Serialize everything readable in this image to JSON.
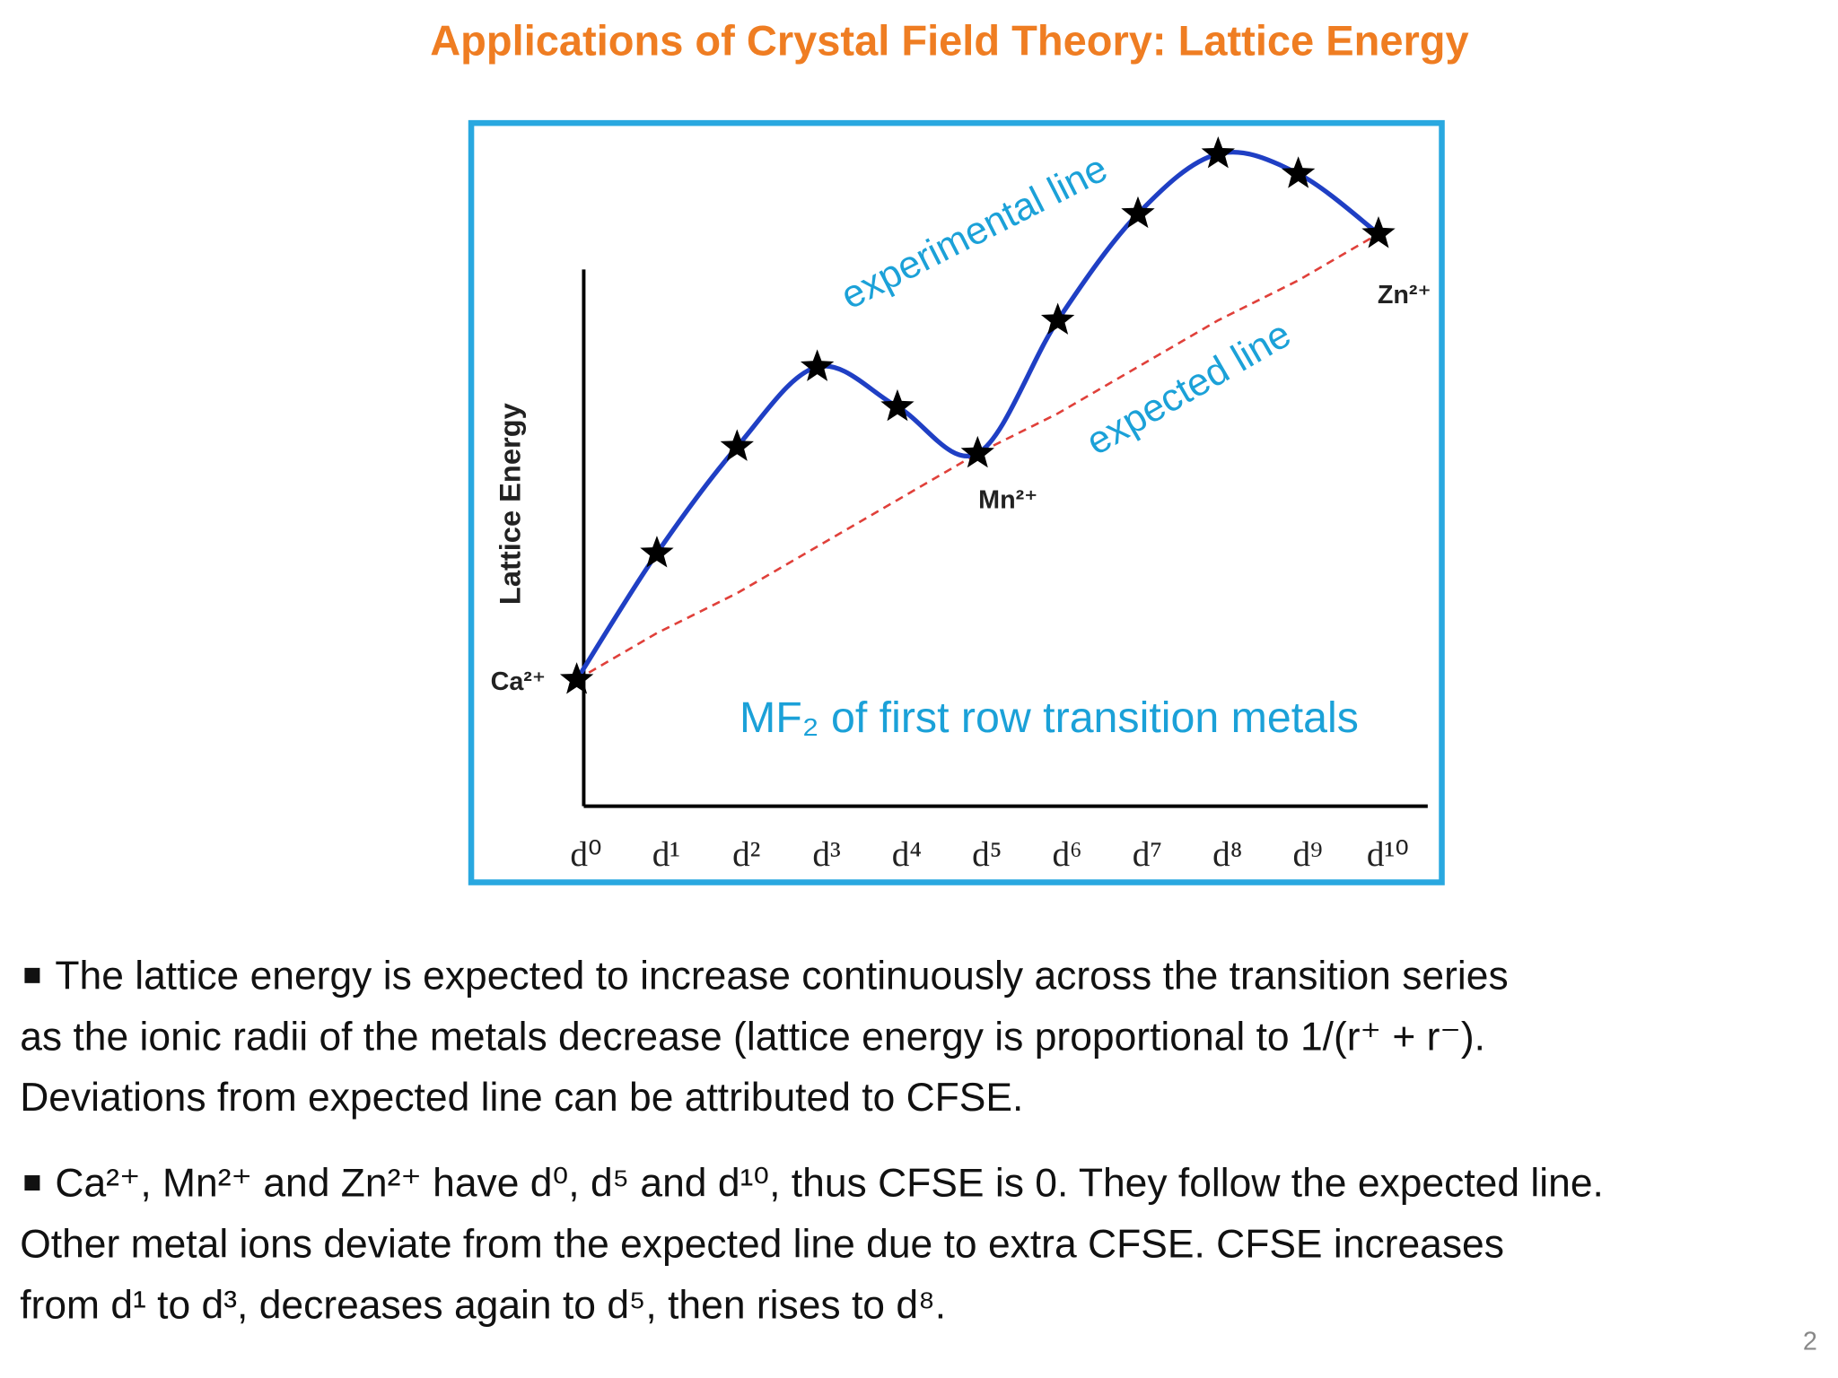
{
  "title": "Applications of Crystal Field Theory: Lattice Energy",
  "chart_data": {
    "type": "line",
    "ylabel": "Lattice Energy",
    "subtitle": "MF₂ of first row transition metals",
    "categories": [
      "d⁰",
      "d¹",
      "d²",
      "d³",
      "d⁴",
      "d⁵",
      "d⁶",
      "d⁷",
      "d⁸",
      "d⁹",
      "d¹⁰"
    ],
    "point_labels": [
      "Ca²⁺",
      "Mn²⁺",
      "Zn²⁺"
    ],
    "series": [
      {
        "name": "experimental line",
        "color": "#1f3fc4",
        "values": [
          19,
          38,
          54,
          66,
          60,
          53,
          73,
          89,
          98,
          95,
          86
        ]
      },
      {
        "name": "expected line",
        "color": "#e0403a",
        "values": [
          19,
          26,
          32,
          39,
          46,
          53,
          59,
          66,
          73,
          79,
          86
        ]
      }
    ],
    "ylim": [
      0,
      100
    ]
  },
  "bullets": [
    [
      "The lattice energy is expected to increase continuously across the transition series",
      "as  the ionic radii of the metals decrease (lattice energy is proportional to 1/(r⁺ + r⁻).",
      "Deviations from expected line can be attributed to CFSE."
    ],
    [
      "Ca²⁺, Mn²⁺ and Zn²⁺ have d⁰, d⁵ and d¹⁰, thus CFSE is 0. They follow the expected line.",
      "Other metal ions deviate from the expected line due to extra CFSE. CFSE increases",
      "from d¹ to d³, decreases again to d⁵, then rises to d⁸."
    ]
  ],
  "page_number": "2"
}
